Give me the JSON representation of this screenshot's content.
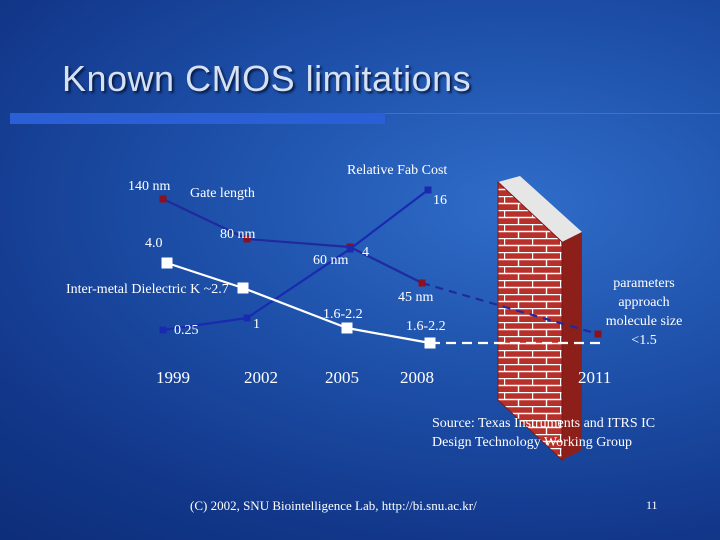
{
  "title": "Known CMOS limitations",
  "chart_data": {
    "type": "line",
    "x_ticks": [
      "1999",
      "2002",
      "2005",
      "2008",
      "2011"
    ],
    "series": [
      {
        "name": "Gate length",
        "unit": "nm",
        "color": "#1f2a9e",
        "points": [
          {
            "x": "1999",
            "label": "140 nm"
          },
          {
            "x": "2002",
            "label": "80 nm"
          },
          {
            "x": "2005",
            "label": "60 nm"
          },
          {
            "x": "2008",
            "label": "45 nm"
          },
          {
            "x": "2011",
            "label": ""
          }
        ],
        "projection_after": "2008"
      },
      {
        "name": "Relative Fab Cost",
        "color": "#1a2ab0",
        "points": [
          {
            "x": "1999",
            "value": 0.25,
            "label": "0.25"
          },
          {
            "x": "2002",
            "value": 1,
            "label": "1"
          },
          {
            "x": "2005",
            "value": 4,
            "label": "4"
          },
          {
            "x": "2008",
            "value": 16,
            "label": "16"
          }
        ]
      },
      {
        "name": "Inter-metal Dielectric K",
        "color": "#ffffff",
        "points": [
          {
            "x": "1999",
            "value": 4.0,
            "label": "4.0"
          },
          {
            "x": "2002",
            "value": 2.7,
            "label": "2.7"
          },
          {
            "x": "2005",
            "value": "1.6-2.2",
            "label": "1.6-2.2"
          },
          {
            "x": "2008",
            "value": "1.6-2.2",
            "label": "1.6-2.2"
          }
        ],
        "projection_after": "2008"
      }
    ],
    "annotations": [
      {
        "text": "Gate length"
      },
      {
        "text": "Relative Fab Cost"
      },
      {
        "text": "Inter-metal Dielectric K ~2.7"
      }
    ],
    "wall_label": [
      "parameters",
      "approach",
      "molecule size",
      "<1.5"
    ]
  },
  "source": "Source: Texas Instruments and ITRS IC Design Technology Working Group",
  "footer": "(C) 2002, SNU Biointelligence Lab, http://bi.snu.ac.kr/",
  "page_number": "11",
  "colors": {
    "background": "#1d4fa8",
    "brick": "#b7302a",
    "mortar": "#ffffff"
  }
}
